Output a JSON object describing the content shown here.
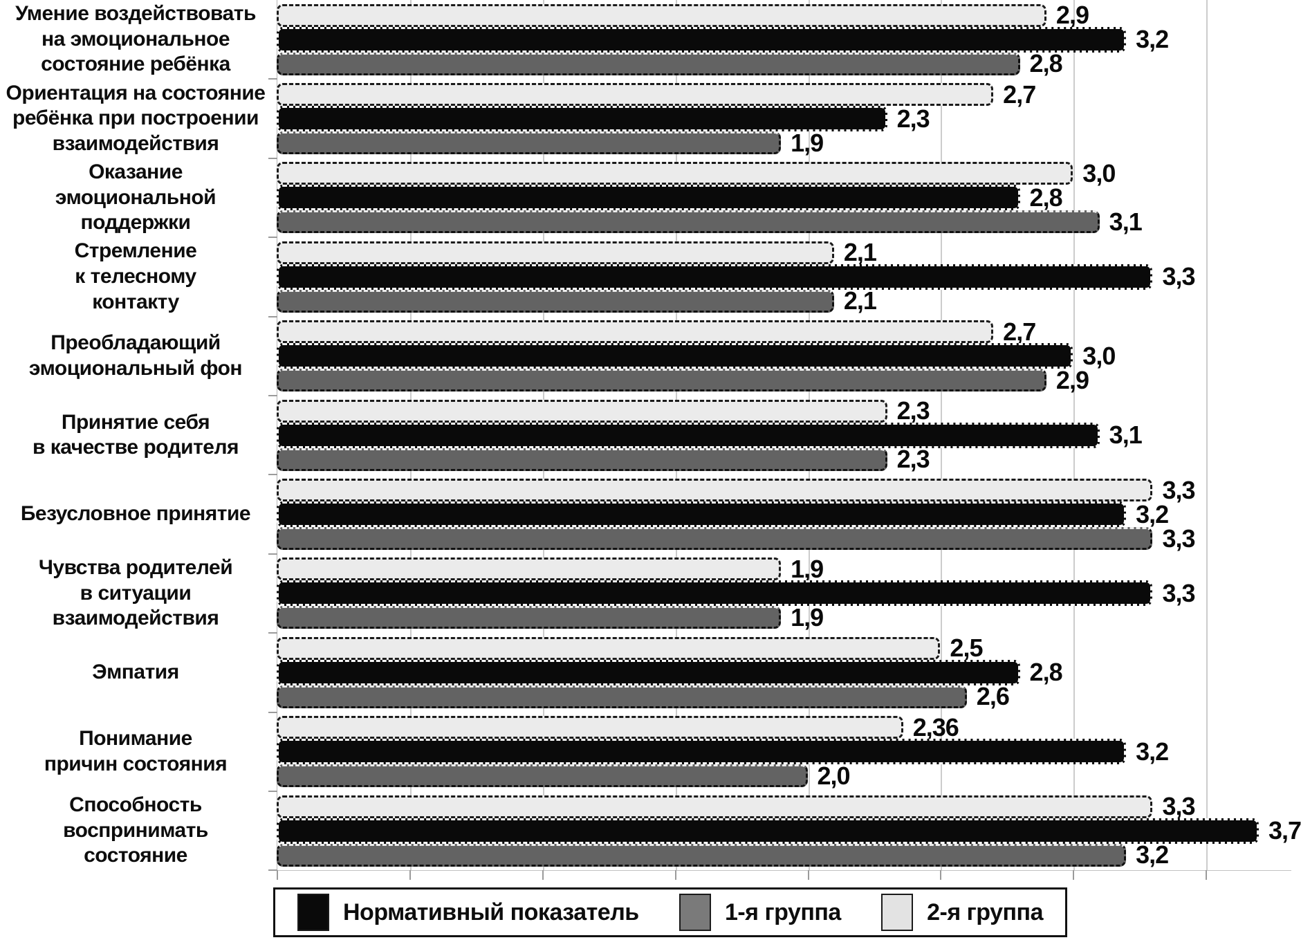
{
  "chart_data": {
    "type": "bar",
    "orientation": "horizontal",
    "title": "",
    "xlabel": "",
    "ylabel": "",
    "xlim": [
      0,
      3.82
    ],
    "gridline_step": 0.5,
    "grid": "vertical gridlines every 0.5",
    "legend_position": "bottom",
    "categories": [
      "Умение воздействовать\nна эмоциональное\nсостояние ребёнка",
      "Ориентация на состояние\nребёнка при построении\nвзаимодействия",
      "Оказание\nэмоциональной\nподдержки",
      "Стремление\nк телесному\nконтакту",
      "Преобладающий\nэмоциональный фон",
      "Принятие себя\nв качестве родителя",
      "Безусловное принятие",
      "Чувства родителей\nв ситуации\nвзаимодействия",
      "Эмпатия",
      "Понимание\nпричин состояния",
      "Способность\nвоспринимать\nсостояние"
    ],
    "series": [
      {
        "name": "2-я группа",
        "color": "#ebebeb",
        "border_style": "dashed-black",
        "values": [
          2.9,
          2.7,
          3.0,
          2.1,
          2.7,
          2.3,
          3.3,
          1.9,
          2.5,
          2.36,
          3.3
        ],
        "labels": [
          "2,9",
          "2,7",
          "3,0",
          "2,1",
          "2,7",
          "2,3",
          "3,3",
          "1,9",
          "2,5",
          "2,36",
          "3,3"
        ]
      },
      {
        "name": "Нормативный показатель",
        "color": "#0a0a0a",
        "border_style": "dashed-white",
        "values": [
          3.2,
          2.3,
          2.8,
          3.3,
          3.0,
          3.1,
          3.2,
          3.3,
          2.8,
          3.2,
          3.7
        ],
        "labels": [
          "3,2",
          "2,3",
          "2,8",
          "3,3",
          "3,0",
          "3,1",
          "3,2",
          "3,3",
          "2,8",
          "3,2",
          "3,7"
        ]
      },
      {
        "name": "1-я группа",
        "color": "#636363",
        "border_style": "dashdot-black",
        "values": [
          2.8,
          1.9,
          3.1,
          2.1,
          2.9,
          2.3,
          3.3,
          1.9,
          2.6,
          2.0,
          3.2
        ],
        "labels": [
          "2,8",
          "1,9",
          "3,1",
          "2,1",
          "2,9",
          "2,3",
          "3,3",
          "1,9",
          "2,6",
          "2,0",
          "3,2"
        ]
      }
    ]
  },
  "legend": {
    "items": [
      {
        "label": "Нормативный показатель",
        "color": "#0a0a0a"
      },
      {
        "label": "1-я группа",
        "color": "#7a7a7a"
      },
      {
        "label": "2-я группа",
        "color": "#e3e3e3"
      }
    ]
  }
}
